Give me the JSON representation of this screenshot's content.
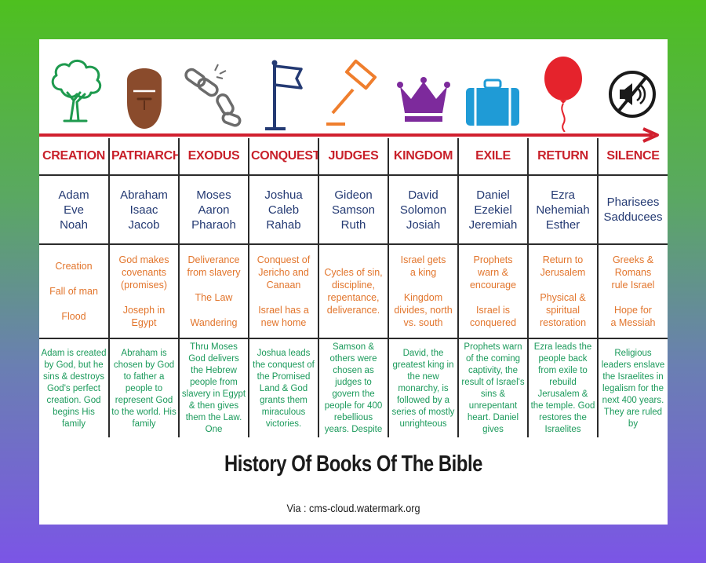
{
  "icons": [
    "tree-icon",
    "bearded-man-icon",
    "broken-chain-icon",
    "flag-icon",
    "gavel-icon",
    "crown-icon",
    "suitcase-icon",
    "balloon-icon",
    "muted-speaker-icon"
  ],
  "colors": {
    "era": "#c8202a",
    "people": "#243a73",
    "themes": "#e2752c",
    "summary": "#1b9a5b",
    "timeline_arrow": "#d1202f"
  },
  "eras": [
    {
      "name": "CREATION",
      "people": "Adam\nEve\nNoah",
      "themes": "Creation\n\nFall of man\n\nFlood",
      "summary": "Adam is created by God, but he sins & destroys God's perfect creation. God begins His family"
    },
    {
      "name": "PATRIARCH",
      "people": "Abraham\nIsaac\nJacob",
      "themes": "God makes\ncovenants\n(promises)\n\nJoseph in\nEgypt",
      "summary": "Abraham is chosen by God to father a people to represent God to the world. His family"
    },
    {
      "name": "EXODUS",
      "people": "Moses\nAaron\nPharaoh",
      "themes": "Deliverance\nfrom slavery\n\nThe Law\n\nWandering",
      "summary": "Thru Moses God delivers the Hebrew people from slavery in Egypt & then gives them the Law. One"
    },
    {
      "name": "CONQUEST",
      "people": "Joshua\nCaleb\nRahab",
      "themes": "Conquest of\nJericho and\nCanaan\n\nIsrael has a\nnew home",
      "summary": "Joshua leads the conquest of the Promised Land & God grants them miraculous victories."
    },
    {
      "name": "JUDGES",
      "people": "Gideon\nSamson\nRuth",
      "themes": "Cycles of sin,\ndiscipline,\nrepentance,\ndeliverance.",
      "summary": "Samson & others were chosen as judges to govern the people for 400 rebellious years. Despite"
    },
    {
      "name": "KINGDOM",
      "people": "David\nSolomon\nJosiah",
      "themes": "Israel gets\na king\n\nKingdom\ndivides, north\nvs. south",
      "summary": "David, the greatest king in the new monarchy, is followed by a series of mostly unrighteous"
    },
    {
      "name": "EXILE",
      "people": "Daniel\nEzekiel\nJeremiah",
      "themes": "Prophets\nwarn &\nencourage\n\nIsrael is\nconquered",
      "summary": "Prophets warn of the coming captivity, the result of Israel's sins & unrepentant heart. Daniel gives"
    },
    {
      "name": "RETURN",
      "people": "Ezra\nNehemiah\nEsther",
      "themes": "Return to\nJerusalem\n\nPhysical &\nspiritual\nrestoration",
      "summary": "Ezra leads the people back from exile to rebuild Jerusalem & the temple. God restores the Israelites"
    },
    {
      "name": "SILENCE",
      "people": "Pharisees\nSadducees",
      "themes": "Greeks &\nRomans\nrule Israel\n\nHope for\na Messiah",
      "summary": "Religious leaders enslave the Israelites in legalism for the next 400 years. They are ruled by"
    }
  ],
  "footer": {
    "title": "History Of Books Of The Bible",
    "via": "Via : cms-cloud.watermark.org"
  }
}
